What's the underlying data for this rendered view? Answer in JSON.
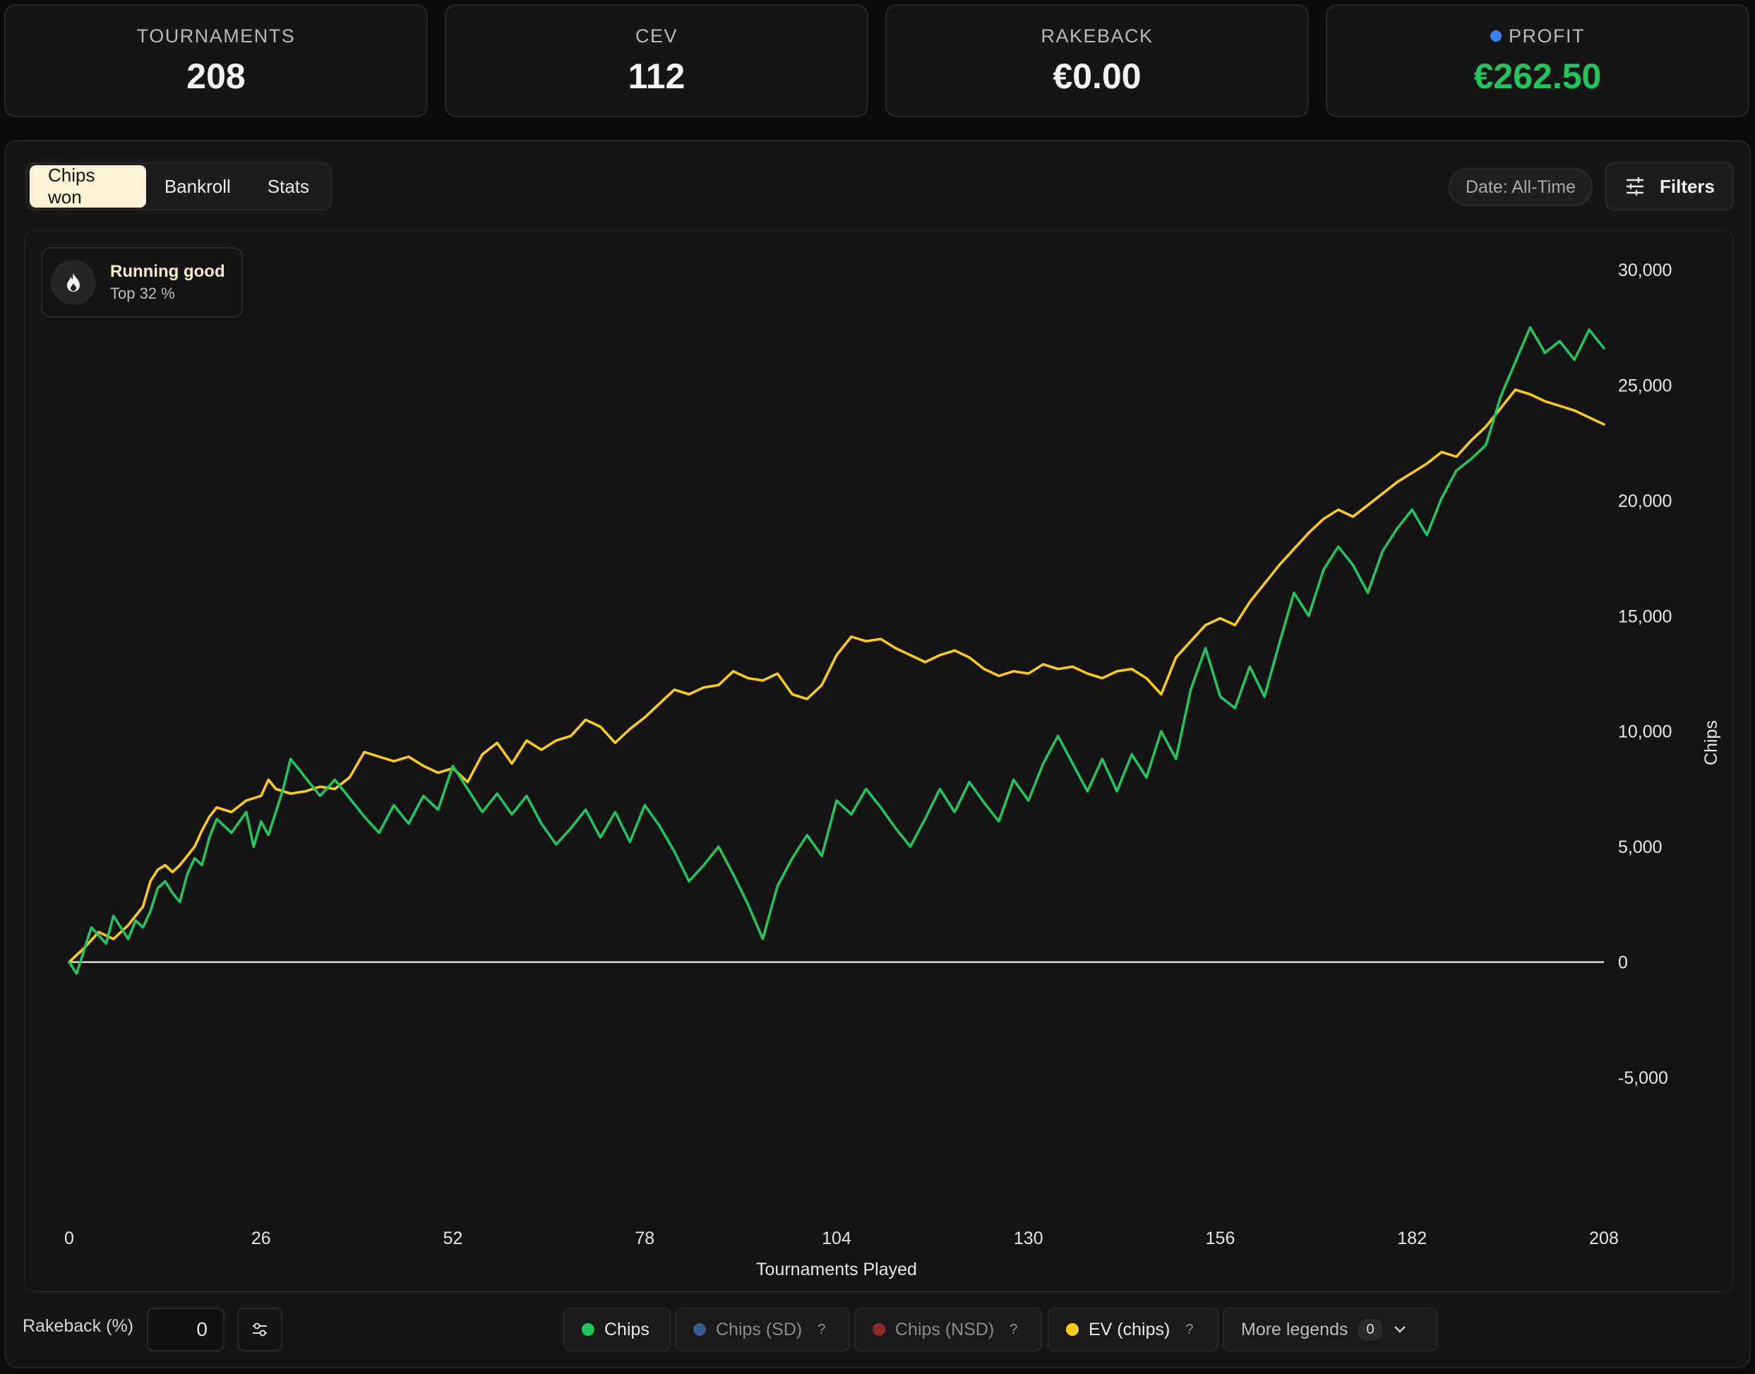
{
  "stats": [
    {
      "label": "TOURNAMENTS",
      "value": "208"
    },
    {
      "label": "CEV",
      "value": "112"
    },
    {
      "label": "RAKEBACK",
      "value": "€0.00"
    },
    {
      "label": "PROFIT",
      "value": "€262.50",
      "dot_color": "#3b82f6",
      "value_color": "#22c55e"
    }
  ],
  "tabs": [
    {
      "label": "Chips won",
      "active": true
    },
    {
      "label": "Bankroll",
      "active": false
    },
    {
      "label": "Stats",
      "active": false
    }
  ],
  "toolbar": {
    "date_label": "Date: All-Time",
    "filters_label": "Filters"
  },
  "badge": {
    "title": "Running good",
    "subtitle": "Top 32 %",
    "icon": "flame-icon"
  },
  "footer": {
    "rakeback_label": "Rakeback (%)",
    "rakeback_value": "0",
    "legends": [
      {
        "label": "Chips",
        "color": "#22c55e",
        "help": "",
        "active": true
      },
      {
        "label": "Chips (SD)",
        "color": "#3b5b8f",
        "help": "?",
        "active": false
      },
      {
        "label": "Chips (NSD)",
        "color": "#8a2a2a",
        "help": "?",
        "active": false
      },
      {
        "label": "EV (chips)",
        "color": "#facc15",
        "help": "?",
        "active": true
      }
    ],
    "more_legends_label": "More legends",
    "more_legends_count": "0"
  },
  "chart_data": {
    "type": "line",
    "xlabel": "Tournaments Played",
    "ylabel": "Chips",
    "xlim": [
      0,
      208
    ],
    "ylim": [
      -5000,
      30000
    ],
    "x_ticks": [
      0,
      26,
      52,
      78,
      104,
      130,
      156,
      182,
      208
    ],
    "y_ticks": [
      30000,
      25000,
      20000,
      15000,
      10000,
      5000,
      0,
      -5000
    ],
    "y_tick_labels": [
      "30,000",
      "25,000",
      "20,000",
      "15,000",
      "10,000",
      "5,000",
      "0",
      "-5,000"
    ],
    "zero_line": true,
    "grid": false,
    "series": [
      {
        "name": "Chips",
        "color": "#22c55e",
        "x": [
          0,
          1,
          3,
          5,
          6,
          7,
          8,
          9,
          10,
          11,
          12,
          13,
          14,
          15,
          16,
          17,
          18,
          19,
          20,
          22,
          24,
          25,
          26,
          27,
          28,
          29,
          30,
          32,
          34,
          36,
          38,
          40,
          42,
          44,
          46,
          48,
          50,
          52,
          54,
          56,
          58,
          60,
          62,
          64,
          66,
          68,
          70,
          72,
          74,
          76,
          78,
          80,
          82,
          84,
          86,
          88,
          90,
          92,
          94,
          96,
          98,
          100,
          102,
          104,
          106,
          108,
          110,
          112,
          114,
          116,
          118,
          120,
          122,
          124,
          126,
          128,
          130,
          132,
          134,
          136,
          138,
          140,
          142,
          144,
          146,
          148,
          150,
          152,
          154,
          156,
          158,
          160,
          162,
          164,
          166,
          168,
          170,
          172,
          174,
          176,
          178,
          180,
          182,
          184,
          186,
          188,
          190,
          192,
          194,
          196,
          198,
          200,
          202,
          204,
          206,
          208
        ],
        "y": [
          0,
          -500,
          1500,
          800,
          2000,
          1500,
          1000,
          1800,
          1500,
          2200,
          3200,
          3500,
          3000,
          2600,
          3800,
          4500,
          4200,
          5400,
          6200,
          5600,
          6500,
          5000,
          6100,
          5500,
          6500,
          7500,
          8800,
          8000,
          7200,
          7900,
          7100,
          6300,
          5600,
          6800,
          6000,
          7200,
          6600,
          8500,
          7500,
          6500,
          7300,
          6400,
          7200,
          6000,
          5100,
          5800,
          6600,
          5400,
          6500,
          5200,
          6800,
          5900,
          4800,
          3500,
          4200,
          5000,
          3800,
          2500,
          1000,
          3300,
          4500,
          5500,
          4600,
          7000,
          6400,
          7500,
          6700,
          5800,
          5000,
          6200,
          7500,
          6500,
          7800,
          6900,
          6100,
          7900,
          7000,
          8600,
          9800,
          8600,
          7400,
          8800,
          7400,
          9000,
          8000,
          10000,
          8800,
          11800,
          13600,
          11500,
          11000,
          12800,
          11500,
          13800,
          16000,
          15000,
          17000,
          18000,
          17200,
          16000,
          17800,
          18800,
          19600,
          18500,
          20100,
          21300,
          21800,
          22400,
          24500,
          26000,
          27500,
          26400,
          26900,
          26100,
          27400,
          26600
        ]
      },
      {
        "name": "EV (chips)",
        "color": "#facc15",
        "x": [
          0,
          2,
          4,
          6,
          8,
          10,
          11,
          12,
          13,
          14,
          15,
          16,
          17,
          18,
          19,
          20,
          22,
          24,
          26,
          27,
          28,
          30,
          32,
          34,
          36,
          38,
          40,
          42,
          44,
          46,
          48,
          50,
          52,
          54,
          56,
          58,
          60,
          62,
          64,
          66,
          68,
          70,
          72,
          74,
          76,
          78,
          80,
          82,
          84,
          86,
          88,
          90,
          92,
          94,
          96,
          98,
          100,
          102,
          104,
          106,
          108,
          110,
          112,
          114,
          116,
          118,
          120,
          122,
          124,
          126,
          128,
          130,
          132,
          134,
          136,
          138,
          140,
          142,
          144,
          146,
          148,
          150,
          152,
          154,
          156,
          158,
          160,
          162,
          164,
          166,
          168,
          170,
          172,
          174,
          176,
          178,
          180,
          182,
          184,
          186,
          188,
          190,
          192,
          194,
          196,
          198,
          200,
          202,
          204,
          206,
          208
        ],
        "y": [
          0,
          600,
          1300,
          1000,
          1600,
          2400,
          3500,
          4000,
          4200,
          3900,
          4200,
          4600,
          5000,
          5700,
          6300,
          6700,
          6500,
          7000,
          7200,
          7900,
          7500,
          7300,
          7400,
          7600,
          7500,
          8000,
          9100,
          8900,
          8700,
          8900,
          8500,
          8200,
          8400,
          7800,
          9000,
          9500,
          8600,
          9600,
          9200,
          9600,
          9800,
          10500,
          10200,
          9500,
          10100,
          10600,
          11200,
          11800,
          11600,
          11900,
          12000,
          12600,
          12300,
          12200,
          12500,
          11600,
          11400,
          12000,
          13300,
          14100,
          13900,
          14000,
          13600,
          13300,
          13000,
          13300,
          13500,
          13200,
          12700,
          12400,
          12600,
          12500,
          12900,
          12700,
          12800,
          12500,
          12300,
          12600,
          12700,
          12300,
          11600,
          13200,
          13900,
          14600,
          14900,
          14600,
          15600,
          16400,
          17200,
          17900,
          18600,
          19200,
          19600,
          19300,
          19800,
          20300,
          20800,
          21200,
          21600,
          22100,
          21900,
          22600,
          23200,
          24000,
          24800,
          24600,
          24300,
          24100,
          23900,
          23600,
          23300
        ]
      }
    ]
  }
}
